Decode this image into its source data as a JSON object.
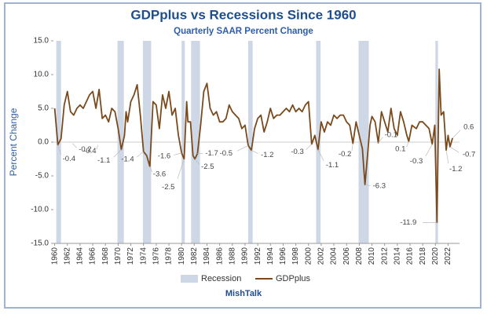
{
  "chart_data": {
    "type": "line",
    "title": "GDPplus vs Recessions Since 1960",
    "subtitle": "Quarterly SAAR Percent Change",
    "y_label": "Percent Change",
    "footer": "MishTalk",
    "xlim": [
      1959.8,
      2023.8
    ],
    "ylim": [
      -15,
      15
    ],
    "yticks": [
      {
        "value": -15,
        "label": "-15.0"
      },
      {
        "value": -10,
        "label": "-10.0"
      },
      {
        "value": -5,
        "label": "-5.0"
      },
      {
        "value": 0,
        "label": "0.0"
      },
      {
        "value": 5,
        "label": "5.0"
      },
      {
        "value": 10,
        "label": "10.0"
      },
      {
        "value": 15,
        "label": "15.0"
      }
    ],
    "xticks": [
      1960,
      1962,
      1964,
      1966,
      1968,
      1970,
      1972,
      1974,
      1976,
      1978,
      1980,
      1982,
      1984,
      1986,
      1988,
      1990,
      1992,
      1994,
      1996,
      1998,
      2000,
      2002,
      2004,
      2006,
      2008,
      2010,
      2012,
      2014,
      2016,
      2018,
      2020,
      2022
    ],
    "recession": {
      "name": "Recession",
      "color": "#cdd7e6",
      "periods": [
        [
          1960.25,
          1961.0
        ],
        [
          1969.9,
          1970.9
        ],
        [
          1973.9,
          1975.2
        ],
        [
          1980.0,
          1980.5
        ],
        [
          1981.5,
          1982.9
        ],
        [
          1990.5,
          1991.2
        ],
        [
          2001.2,
          2001.9
        ],
        [
          2007.9,
          2009.5
        ],
        [
          2020.0,
          2020.4
        ]
      ]
    },
    "series": [
      {
        "name": "GDPplus",
        "color": "#7b4a1c",
        "x": [
          1960,
          1960.5,
          1961,
          1961.5,
          1962,
          1962.5,
          1963,
          1963.5,
          1964,
          1964.5,
          1965,
          1965.5,
          1966,
          1966.5,
          1967,
          1967.5,
          1968,
          1968.5,
          1969,
          1969.5,
          1970,
          1970.5,
          1971,
          1971.25,
          1971.5,
          1972,
          1972.5,
          1973,
          1973.5,
          1974,
          1974.5,
          1975,
          1975.5,
          1976,
          1976.5,
          1977,
          1977.5,
          1978,
          1978.5,
          1979,
          1979.5,
          1980,
          1980.4,
          1980.8,
          1981,
          1981.4,
          1981.8,
          1982.1,
          1982.5,
          1983,
          1983.5,
          1984,
          1984.5,
          1985,
          1985.5,
          1986,
          1986.5,
          1987,
          1987.5,
          1988,
          1988.5,
          1989,
          1989.5,
          1990,
          1990.5,
          1991,
          1991.5,
          1992,
          1992.5,
          1993,
          1993.5,
          1994,
          1994.5,
          1995,
          1995.5,
          1996,
          1996.5,
          1997,
          1997.5,
          1998,
          1998.5,
          1999,
          1999.5,
          2000,
          2000.5,
          2001,
          2001.5,
          2002,
          2002.5,
          2003,
          2003.5,
          2004,
          2004.5,
          2005,
          2005.5,
          2006,
          2006.5,
          2007,
          2007.5,
          2008,
          2008.5,
          2008.9,
          2009.3,
          2009.7,
          2010,
          2010.5,
          2011,
          2011.5,
          2012,
          2012.5,
          2013,
          2013.5,
          2014,
          2014.5,
          2015,
          2015.5,
          2015.8,
          2016.3,
          2017,
          2017.5,
          2018,
          2018.5,
          2019,
          2019.5,
          2019.9,
          2020.25,
          2020.6,
          2020.9,
          2021.3,
          2021.7,
          2022.0,
          2022.3,
          2022.7
        ],
        "values": [
          5,
          -0.4,
          0.5,
          5.5,
          7.5,
          4.5,
          4,
          5,
          5.5,
          5,
          6,
          7,
          7.5,
          5,
          7.8,
          3.5,
          4,
          3,
          5,
          4.5,
          2,
          -1.1,
          1,
          4.5,
          3,
          6,
          7,
          8.5,
          4,
          -1.4,
          -2,
          -3.6,
          6,
          5.5,
          2,
          7,
          5,
          7.5,
          4,
          5,
          1,
          -1.6,
          -2.5,
          6,
          3,
          3,
          -2,
          -2.5,
          -1.7,
          2.5,
          7.5,
          8.7,
          5,
          4,
          4.5,
          3,
          3,
          3.5,
          5.5,
          4.5,
          4,
          3.5,
          2,
          2.5,
          -0.5,
          -1.2,
          2,
          3.5,
          4,
          1.5,
          3,
          5,
          3.5,
          4,
          4,
          4.5,
          5,
          4.5,
          5.5,
          4.5,
          5,
          4.5,
          5.5,
          6,
          -0.3,
          1,
          -1.1,
          3,
          1.5,
          3,
          2.5,
          4,
          3.5,
          4,
          4,
          3,
          2.5,
          -0.2,
          3,
          1,
          -1,
          -6.3,
          -2,
          2.5,
          3.8,
          3,
          -0.1,
          4.5,
          3,
          1.5,
          5,
          2,
          1,
          4.5,
          3,
          1,
          0.1,
          2.5,
          2,
          3,
          3,
          2.5,
          2,
          -0.3,
          2.5,
          -11.9,
          10.8,
          4,
          4.5,
          -1.2,
          1,
          -0.7,
          0.6
        ]
      }
    ],
    "annotations": [
      {
        "x": 1960.5,
        "value": -0.4
      },
      {
        "x": 1962.8,
        "value": -0.2
      },
      {
        "x": 1966.8,
        "value": -0.4
      },
      {
        "x": 1970.5,
        "value": -1.1
      },
      {
        "x": 1974,
        "value": -1.4
      },
      {
        "x": 1975,
        "value": -3.6
      },
      {
        "x": 1980,
        "value": -1.6
      },
      {
        "x": 1980.4,
        "value": -2.5
      },
      {
        "x": 1982.1,
        "value": -2.5
      },
      {
        "x": 1982.5,
        "value": -1.7
      },
      {
        "x": 1990.5,
        "value": -0.5
      },
      {
        "x": 1991,
        "value": -1.2
      },
      {
        "x": 2000.5,
        "value": -0.3
      },
      {
        "x": 2001.5,
        "value": -1.1
      },
      {
        "x": 2007,
        "value": -0.2
      },
      {
        "x": 2008.9,
        "value": -6.3
      },
      {
        "x": 2011,
        "value": -0.1
      },
      {
        "x": 2015.8,
        "value": 0.1
      },
      {
        "x": 2019.5,
        "value": -0.3
      },
      {
        "x": 2020.25,
        "value": -11.9
      },
      {
        "x": 2021.7,
        "value": -1.2
      },
      {
        "x": 2022.3,
        "value": -0.7
      },
      {
        "x": 2022.7,
        "value": 0.6
      }
    ]
  }
}
